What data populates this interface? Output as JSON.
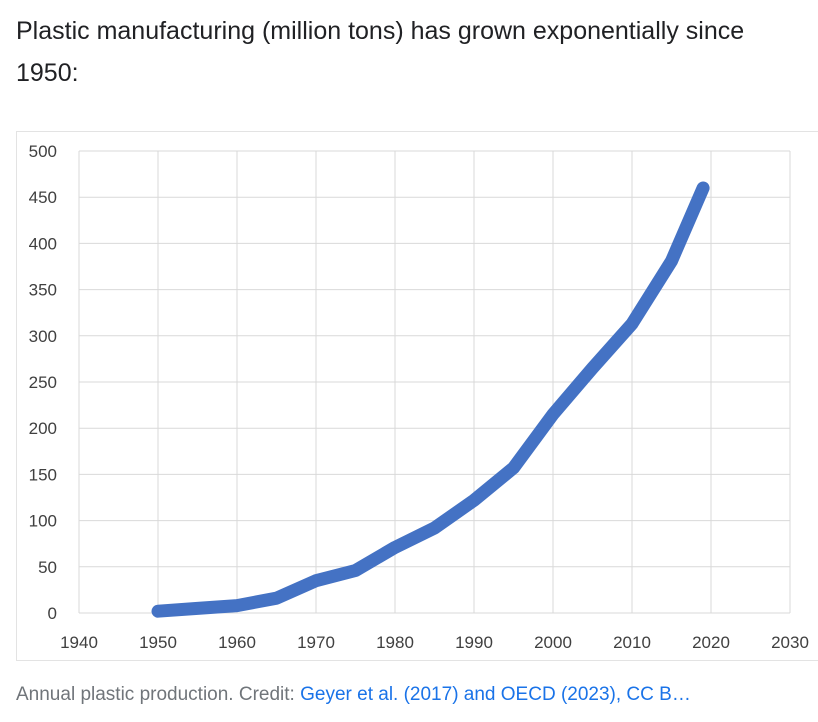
{
  "heading": "Plastic manufacturing (million tons) has grown exponentially since 1950:",
  "caption": {
    "prefix": "Annual plastic production. Credit: ",
    "link": "Geyer et al. (2017) and OECD (2023), CC B…"
  },
  "colors": {
    "series": "#4472c4",
    "grid": "#d9d9d9"
  },
  "chart_data": {
    "type": "line",
    "title": "",
    "xlabel": "",
    "ylabel": "",
    "xlim": [
      1940,
      2030
    ],
    "ylim": [
      0,
      500
    ],
    "x_ticks": [
      1940,
      1950,
      1960,
      1970,
      1980,
      1990,
      2000,
      2010,
      2020,
      2030
    ],
    "y_ticks": [
      0,
      50,
      100,
      150,
      200,
      250,
      300,
      350,
      400,
      450,
      500
    ],
    "grid": true,
    "legend": "none",
    "series": [
      {
        "name": "Annual plastic production",
        "x": [
          1950,
          1955,
          1960,
          1965,
          1970,
          1975,
          1980,
          1985,
          1990,
          1995,
          2000,
          2005,
          2010,
          2015,
          2019
        ],
        "y": [
          2,
          5,
          8,
          16,
          35,
          46,
          71,
          92,
          122,
          157,
          215,
          265,
          313,
          381,
          460
        ]
      }
    ]
  }
}
